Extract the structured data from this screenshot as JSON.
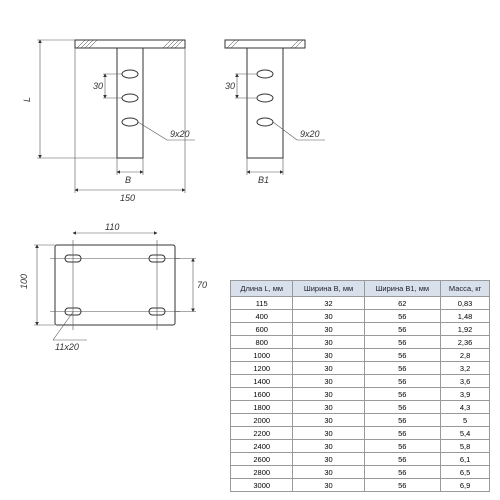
{
  "drawing": {
    "dims": {
      "L": "L",
      "d30_left": "30",
      "d30_right": "30",
      "slot_9x20": "9x20",
      "B": "B",
      "B1": "B1",
      "d150": "150",
      "d110": "110",
      "d100": "100",
      "d70": "70",
      "slot_11x20": "11x20"
    },
    "colors": {
      "line": "#333333",
      "thin": "#555555",
      "header_bg": "#d8e0ec",
      "border": "#999999",
      "bg": "#ffffff"
    }
  },
  "table": {
    "columns": [
      "Длина L, мм",
      "Ширина В, мм",
      "Ширина В1, мм",
      "Масса, кг"
    ],
    "rows": [
      [
        "115",
        "32",
        "62",
        "0,83"
      ],
      [
        "400",
        "30",
        "56",
        "1,48"
      ],
      [
        "600",
        "30",
        "56",
        "1,92"
      ],
      [
        "800",
        "30",
        "56",
        "2,36"
      ],
      [
        "1000",
        "30",
        "56",
        "2,8"
      ],
      [
        "1200",
        "30",
        "56",
        "3,2"
      ],
      [
        "1400",
        "30",
        "56",
        "3,6"
      ],
      [
        "1600",
        "30",
        "56",
        "3,9"
      ],
      [
        "1800",
        "30",
        "56",
        "4,3"
      ],
      [
        "2000",
        "30",
        "56",
        "5"
      ],
      [
        "2200",
        "30",
        "56",
        "5,4"
      ],
      [
        "2400",
        "30",
        "56",
        "5,8"
      ],
      [
        "2600",
        "30",
        "56",
        "6,1"
      ],
      [
        "2800",
        "30",
        "56",
        "6,5"
      ],
      [
        "3000",
        "30",
        "56",
        "6,9"
      ]
    ]
  }
}
